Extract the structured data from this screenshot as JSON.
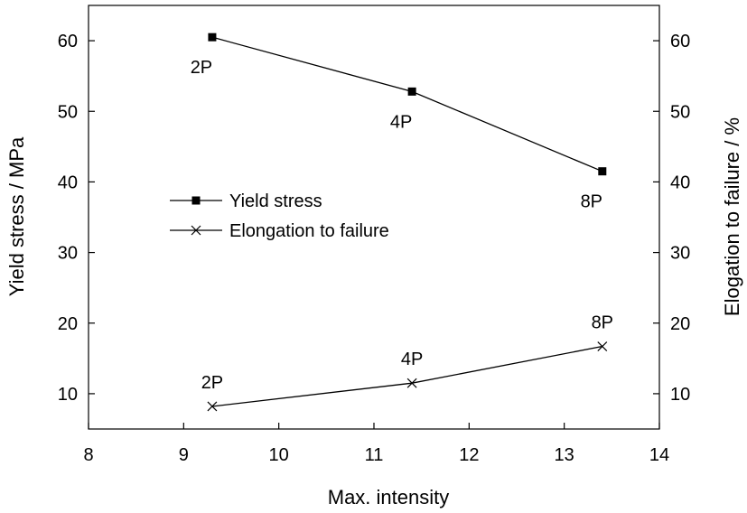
{
  "chart_data": {
    "type": "line",
    "xlabel": "Max. intensity",
    "ylabel_left": "Yield stress / MPa",
    "ylabel_right": "Elogation to failure / %",
    "xlim": [
      8,
      14
    ],
    "ylim_left": [
      5,
      65
    ],
    "ylim_right": [
      5,
      65
    ],
    "x_ticks": [
      "8",
      "9",
      "10",
      "11",
      "12",
      "13",
      "14"
    ],
    "y_ticks_left": [
      "10",
      "20",
      "30",
      "40",
      "50",
      "60"
    ],
    "y_ticks_right": [
      "10",
      "20",
      "30",
      "40",
      "50",
      "60"
    ],
    "grid": false,
    "legend_position": "left-middle",
    "series": [
      {
        "name": "Yield stress",
        "axis": "left",
        "marker": "square",
        "color": "#000000",
        "x": [
          9.3,
          11.4,
          13.4
        ],
        "y": [
          60.5,
          52.8,
          41.5
        ],
        "point_labels": [
          "2P",
          "4P",
          "8P"
        ],
        "label_placement": "below"
      },
      {
        "name": "Elongation to failure",
        "axis": "right",
        "marker": "x",
        "color": "#000000",
        "x": [
          9.3,
          11.4,
          13.4
        ],
        "y": [
          8.2,
          11.5,
          16.7
        ],
        "point_labels": [
          "2P",
          "4P",
          "8P"
        ],
        "label_placement": "above"
      }
    ]
  }
}
